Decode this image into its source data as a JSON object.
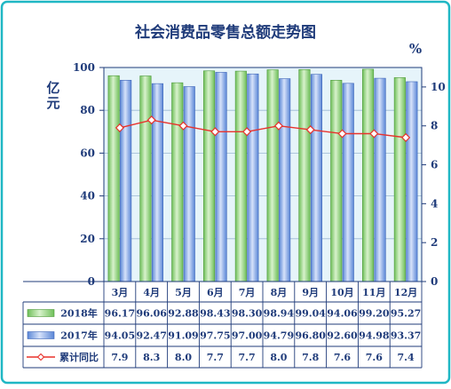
{
  "chart_data": {
    "type": "bar",
    "title": "社会消费品零售总额走势图",
    "ylabel_left": "亿元",
    "ylabel_right": "%",
    "ylim_left": [
      0,
      100
    ],
    "yticks_left": [
      "0",
      "20",
      "40",
      "60",
      "80",
      "100"
    ],
    "ylim_right": [
      0,
      11
    ],
    "yticks_right": [
      "0",
      "2",
      "4",
      "6",
      "8",
      "10"
    ],
    "categories": [
      "3月",
      "4月",
      "5月",
      "6月",
      "7月",
      "8月",
      "9月",
      "10月",
      "11月",
      "12月"
    ],
    "series": [
      {
        "name": "2018年",
        "kind": "bar",
        "color": "#8fd07a",
        "values": [
          96.17,
          96.06,
          92.88,
          98.43,
          98.3,
          98.94,
          99.04,
          94.06,
          99.2,
          95.27
        ],
        "labels": [
          "96.17",
          "96.06",
          "92.88",
          "98.43",
          "98.30",
          "98.94",
          "99.04",
          "94.06",
          "99.20",
          "95.27"
        ]
      },
      {
        "name": "2017年",
        "kind": "bar",
        "color": "#7b9fe0",
        "values": [
          94.05,
          92.47,
          91.09,
          97.75,
          97.0,
          94.79,
          96.8,
          92.6,
          94.98,
          93.37
        ],
        "labels": [
          "94.05",
          "92.47",
          "91.09",
          "97.75",
          "97.00",
          "94.79",
          "96.80",
          "92.60",
          "94.98",
          "93.37"
        ]
      },
      {
        "name": "累计同比",
        "kind": "line",
        "color": "#e8322c",
        "axis": "right",
        "values": [
          7.9,
          8.3,
          8.0,
          7.7,
          7.7,
          8.0,
          7.8,
          7.6,
          7.6,
          7.4
        ],
        "labels": [
          "7.9",
          "8.3",
          "8.0",
          "7.7",
          "7.7",
          "8.0",
          "7.8",
          "7.6",
          "7.6",
          "7.4"
        ]
      }
    ],
    "grid": true,
    "legend": "table-below"
  },
  "colors": {
    "frame": "#1fb7c4",
    "plot_bg": "#e6f4fa",
    "text": "#1f3b7a"
  }
}
